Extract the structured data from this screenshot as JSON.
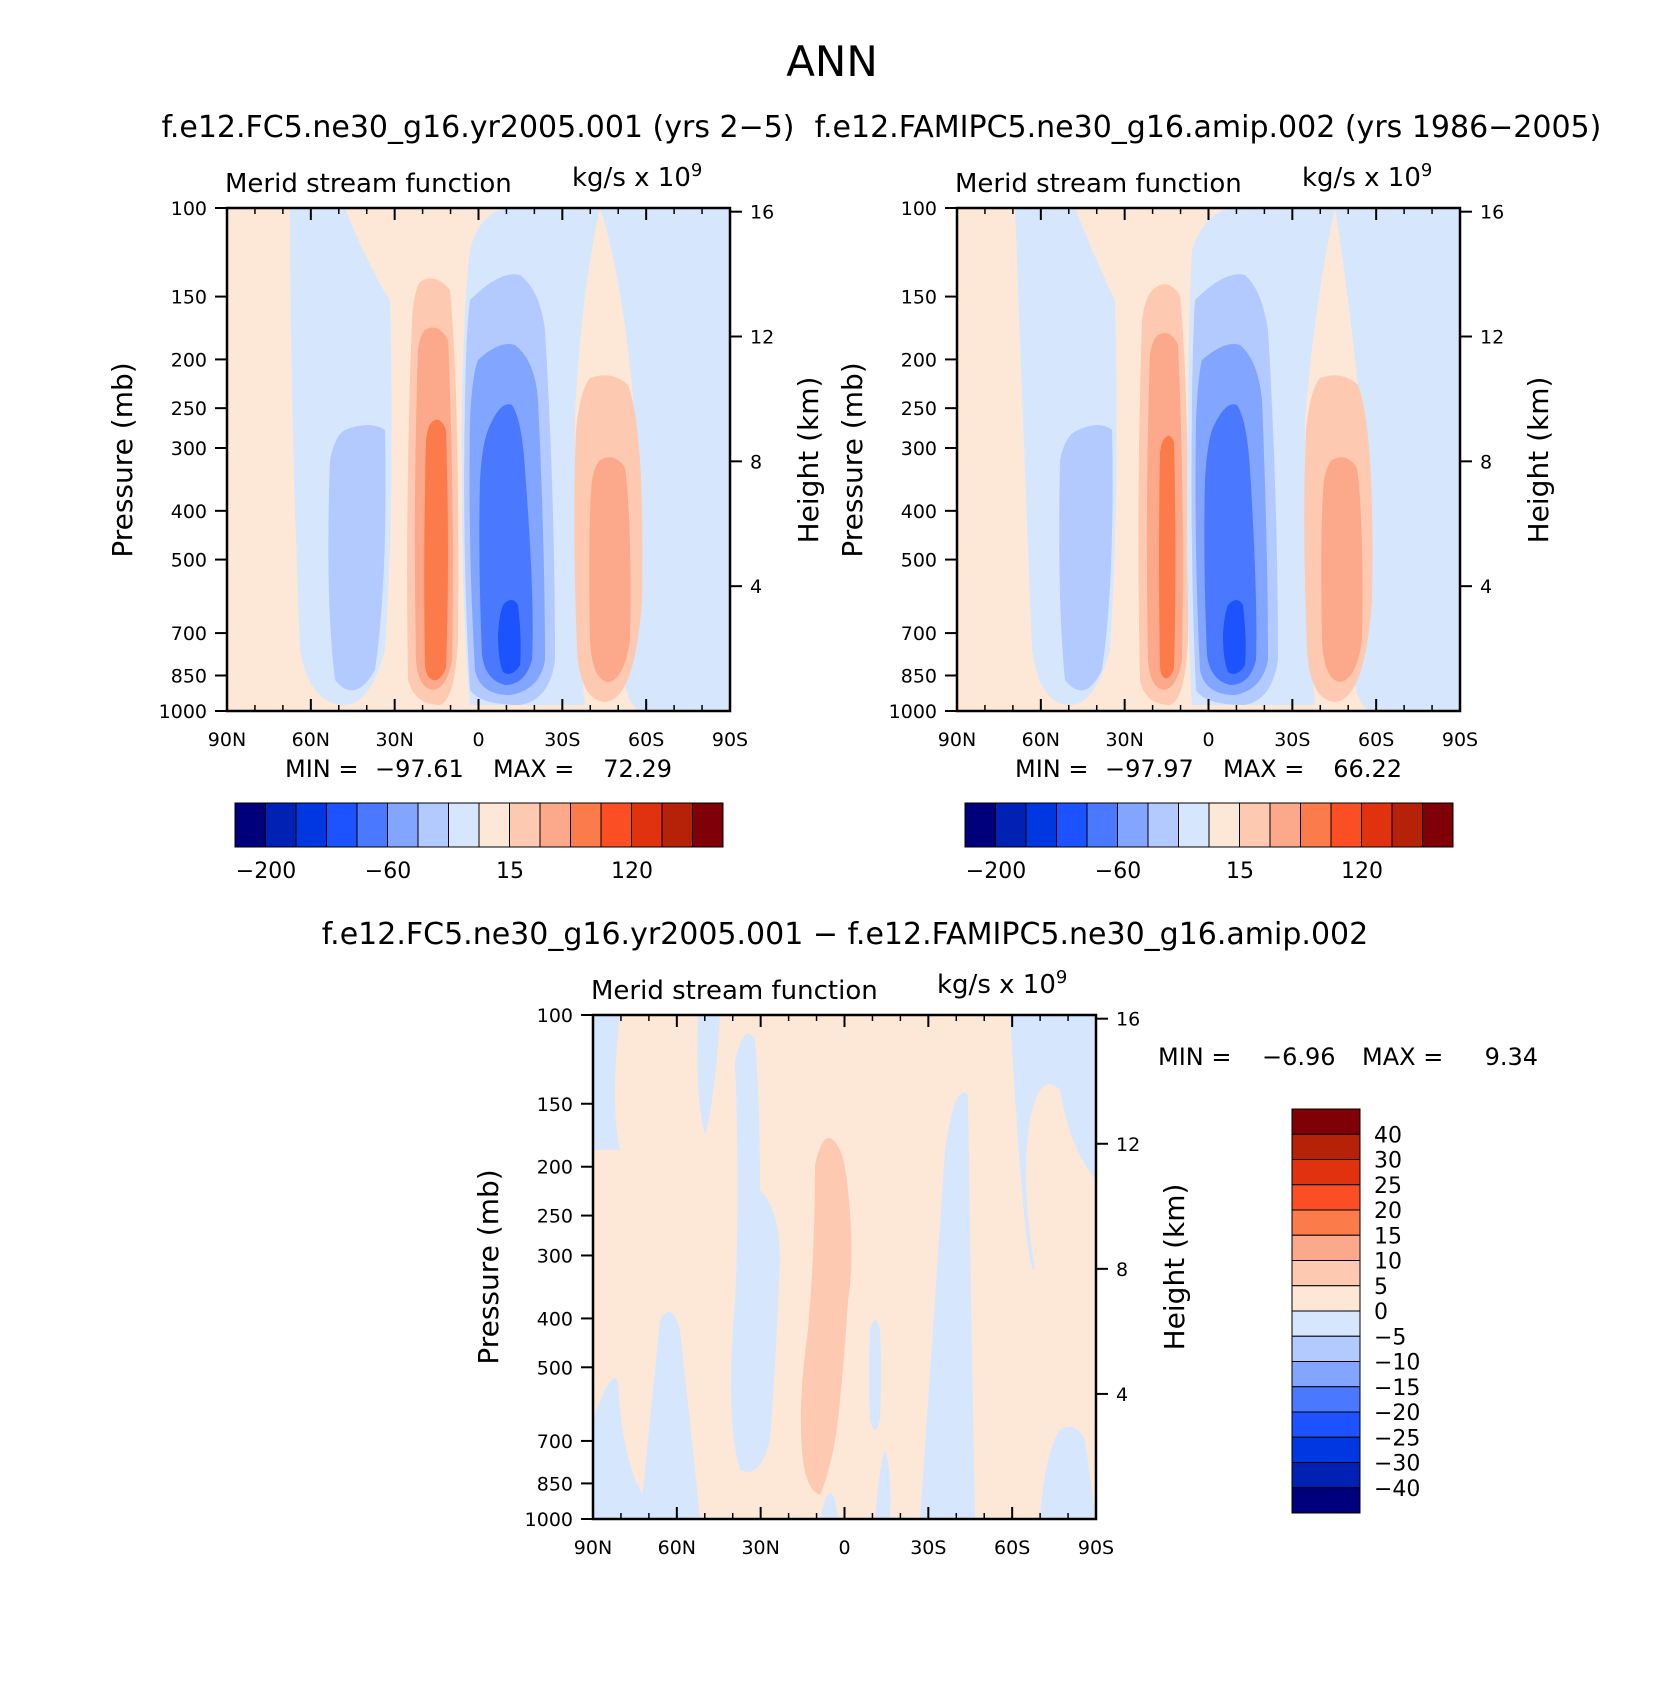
{
  "title": "ANN",
  "colors": {
    "levels": [
      "#00007d",
      "#0021b3",
      "#0037e0",
      "#1c52ff",
      "#4a79ff",
      "#82a5ff",
      "#b2caff",
      "#d6e7fd",
      "#fde8d8",
      "#fdc9b0",
      "#fca88a",
      "#fc7b4b",
      "#fc4e25",
      "#e13210",
      "#b52208",
      "#7f0007"
    ],
    "axis": "#000000",
    "background": "#ffffff"
  },
  "chart_data": [
    {
      "type": "contour",
      "panel": "top-left",
      "title": "f.e12.FC5.ne30_g16.yr2005.001 (yrs 2−5)",
      "subtitle": "Merid stream function",
      "units": "kg/s x 10",
      "units_exp": "9",
      "xlabel": "",
      "ylabel": "Pressure (mb)",
      "ylabel_right": "Height (km)",
      "x_range": [
        90,
        -90
      ],
      "x_ticks": [
        {
          "v": 90,
          "label": "90N"
        },
        {
          "v": 60,
          "label": "60N"
        },
        {
          "v": 30,
          "label": "30N"
        },
        {
          "v": 0,
          "label": "0"
        },
        {
          "v": -30,
          "label": "30S"
        },
        {
          "v": -60,
          "label": "60S"
        },
        {
          "v": -90,
          "label": "90S"
        }
      ],
      "y_range": [
        1000,
        100
      ],
      "y_ticks": [
        1000,
        850,
        700,
        500,
        400,
        300,
        250,
        200,
        150,
        100
      ],
      "height_ticks": [
        4,
        8,
        12,
        16
      ],
      "stats": {
        "min_label": "MIN =",
        "min": "−97.61",
        "max_label": "MAX =",
        "max": "72.29"
      },
      "colorbar": {
        "orientation": "horizontal",
        "labels": [
          "−200",
          "−60",
          "15",
          "120"
        ]
      },
      "features": [
        {
          "name": "southern-polar-cell",
          "lat": 45,
          "p_top": 1000,
          "p_bot": 1000,
          "value": -20
        },
        {
          "name": "southern-ferrel-cell",
          "lat": 40,
          "p_top": 270,
          "p_bot": 980,
          "value": -30
        },
        {
          "name": "hadley-cell-north",
          "lat": 15,
          "p_top": 170,
          "p_bot": 990,
          "value": 72.29
        },
        {
          "name": "hadley-cell-south",
          "lat": -11,
          "p_top": 160,
          "p_bot": 990,
          "value": -97.61
        },
        {
          "name": "ferrel-cell-south",
          "lat": -48,
          "p_top": 230,
          "p_bot": 980,
          "value": 50
        }
      ]
    },
    {
      "type": "contour",
      "panel": "top-right",
      "title": "f.e12.FAMIPC5.ne30_g16.amip.002 (yrs 1986−2005)",
      "subtitle": "Merid stream function",
      "units": "kg/s x 10",
      "units_exp": "9",
      "xlabel": "",
      "ylabel": "Pressure (mb)",
      "ylabel_right": "Height (km)",
      "x_range": [
        90,
        -90
      ],
      "x_ticks": [
        {
          "v": 90,
          "label": "90N"
        },
        {
          "v": 60,
          "label": "60N"
        },
        {
          "v": 30,
          "label": "30N"
        },
        {
          "v": 0,
          "label": "0"
        },
        {
          "v": -30,
          "label": "30S"
        },
        {
          "v": -60,
          "label": "60S"
        },
        {
          "v": -90,
          "label": "90S"
        }
      ],
      "y_range": [
        1000,
        100
      ],
      "y_ticks": [
        1000,
        850,
        700,
        500,
        400,
        300,
        250,
        200,
        150,
        100
      ],
      "height_ticks": [
        4,
        8,
        12,
        16
      ],
      "stats": {
        "min_label": "MIN =",
        "min": "−97.97",
        "max_label": "MAX =",
        "max": "66.22"
      },
      "colorbar": {
        "orientation": "horizontal",
        "labels": [
          "−200",
          "−60",
          "15",
          "120"
        ]
      },
      "features": [
        {
          "name": "southern-ferrel-cell",
          "lat": 40,
          "p_top": 270,
          "p_bot": 980,
          "value": -30
        },
        {
          "name": "hadley-cell-north",
          "lat": 15,
          "p_top": 160,
          "p_bot": 990,
          "value": 66.22
        },
        {
          "name": "hadley-cell-south",
          "lat": -11,
          "p_top": 160,
          "p_bot": 990,
          "value": -97.97
        },
        {
          "name": "ferrel-cell-south",
          "lat": -48,
          "p_top": 230,
          "p_bot": 980,
          "value": 45
        }
      ]
    },
    {
      "type": "contour",
      "panel": "bottom",
      "title": "f.e12.FC5.ne30_g16.yr2005.001 − f.e12.FAMIPC5.ne30_g16.amip.002",
      "subtitle": "Merid stream function",
      "units": "kg/s x 10",
      "units_exp": "9",
      "xlabel": "",
      "ylabel": "Pressure (mb)",
      "ylabel_right": "Height (km)",
      "x_range": [
        90,
        -90
      ],
      "x_ticks": [
        {
          "v": 90,
          "label": "90N"
        },
        {
          "v": 60,
          "label": "60N"
        },
        {
          "v": 30,
          "label": "30N"
        },
        {
          "v": 0,
          "label": "0"
        },
        {
          "v": -30,
          "label": "30S"
        },
        {
          "v": -60,
          "label": "60S"
        },
        {
          "v": -90,
          "label": "90S"
        }
      ],
      "y_range": [
        1000,
        100
      ],
      "y_ticks": [
        1000,
        850,
        700,
        500,
        400,
        300,
        250,
        200,
        150,
        100
      ],
      "height_ticks": [
        4,
        8,
        12,
        16
      ],
      "stats": {
        "min_label": "MIN =",
        "min": "−6.96",
        "max_label": "MAX =",
        "max": "9.34"
      },
      "colorbar": {
        "orientation": "vertical",
        "labels": [
          "40",
          "30",
          "25",
          "20",
          "15",
          "10",
          "5",
          "0",
          "−5",
          "−10",
          "−15",
          "−20",
          "−25",
          "−30",
          "−40"
        ]
      },
      "features": [
        {
          "name": "positive-anomaly-equator",
          "lat": -2,
          "p_top": 190,
          "p_bot": 980,
          "value": 9.34
        },
        {
          "name": "negative-anomaly-30n",
          "lat": 33,
          "p_top": 110,
          "p_bot": 950,
          "value": -3
        },
        {
          "name": "negative-anomaly-40s",
          "lat": -40,
          "p_top": 150,
          "p_bot": 1000,
          "value": -3
        },
        {
          "name": "negative-anomaly-90s",
          "lat": -78,
          "p_top": 100,
          "p_bot": 1000,
          "value": -6.96
        }
      ]
    }
  ]
}
